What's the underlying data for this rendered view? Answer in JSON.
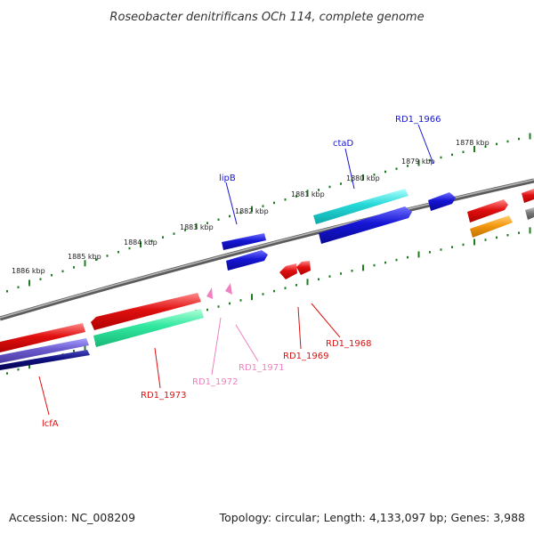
{
  "title": "Roseobacter denitrificans OCh 114, complete genome",
  "footer": {
    "accession": "Accession: NC_008209",
    "summary": "Topology: circular; Length: 4,133,097 bp; Genes: 3,988"
  },
  "scale_labels": [
    "1886 kbp",
    "1885 kbp",
    "1884 kbp",
    "1883 kbp",
    "1882 kbp",
    "1881 kbp",
    "1880 kbp",
    "1879 kbp",
    "1878 kbp"
  ],
  "gene_labels": {
    "lcfA": "lcfA",
    "rd1_1973": "RD1_1973",
    "rd1_1972": "RD1_1972",
    "rd1_1971": "RD1_1971",
    "rd1_1969": "RD1_1969",
    "rd1_1968": "RD1_1968",
    "lipB": "lipB",
    "ctaD": "ctaD",
    "rd1_1966": "RD1_1966"
  },
  "colors": {
    "backbone": "#8a8a8a",
    "scale_tick": "#1e7d1e",
    "red": "#e01010",
    "blue": "#1515d5",
    "cyan": "#25d8d8",
    "mint": "#30e8a0",
    "purple": "#6a5acd",
    "navy": "#101080",
    "orange": "#f59a10",
    "pink": "#f080c0",
    "gray": "#7a7a7a"
  }
}
